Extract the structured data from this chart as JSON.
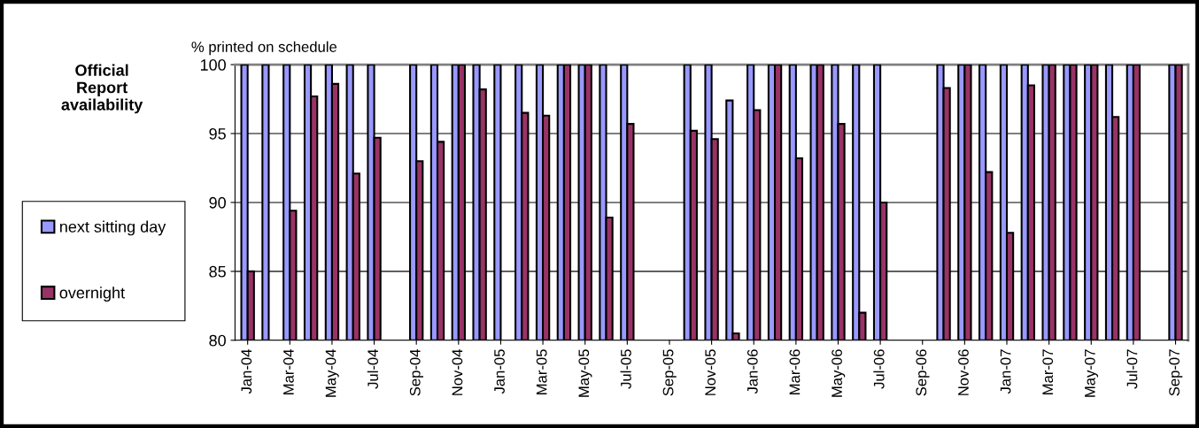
{
  "chart_data": {
    "type": "bar",
    "title": "Official\nReport\navailability",
    "ylabel": "% printed on schedule",
    "categories": [
      "Jan-04",
      null,
      "Mar-04",
      null,
      "May-04",
      null,
      "Jul-04",
      null,
      "Sep-04",
      null,
      "Nov-04",
      null,
      "Jan-05",
      null,
      "Mar-05",
      null,
      "May-05",
      null,
      "Jul-05",
      null,
      "Sep-05",
      null,
      "Nov-05",
      null,
      "Jan-06",
      null,
      "Mar-06",
      null,
      "May-06",
      null,
      "Jul-06",
      null,
      "Sep-06",
      null,
      "Nov-06",
      null,
      "Jan-07",
      null,
      "Mar-07",
      null,
      "May-07",
      null,
      "Jul-07",
      null,
      "Sep-07"
    ],
    "series": [
      {
        "name": "next sitting day",
        "color": "#9999ff",
        "values": [
          100,
          100,
          100,
          100,
          100,
          100,
          100,
          null,
          100,
          100,
          100,
          100,
          100,
          100,
          100,
          100,
          100,
          100,
          100,
          null,
          null,
          100,
          100,
          97.4,
          100,
          100,
          100,
          100,
          100,
          100,
          100,
          null,
          null,
          100,
          100,
          100,
          100,
          100,
          100,
          100,
          100,
          100,
          100,
          null,
          100
        ]
      },
      {
        "name": "overnight",
        "color": "#993366",
        "values": [
          85,
          null,
          89.4,
          97.7,
          98.6,
          92.1,
          94.7,
          null,
          93.0,
          94.4,
          100,
          98.2,
          null,
          96.5,
          96.3,
          100,
          100,
          88.9,
          95.7,
          null,
          null,
          95.2,
          94.6,
          80.5,
          96.7,
          100,
          93.2,
          100,
          95.7,
          82.0,
          90.0,
          null,
          null,
          98.3,
          100,
          92.2,
          87.8,
          98.5,
          100,
          100,
          100,
          96.2,
          100,
          null,
          100
        ]
      }
    ],
    "ylim": [
      80,
      100
    ],
    "yticks": [
      80,
      85,
      90,
      95,
      100
    ],
    "grid": "y",
    "legend": "left"
  }
}
